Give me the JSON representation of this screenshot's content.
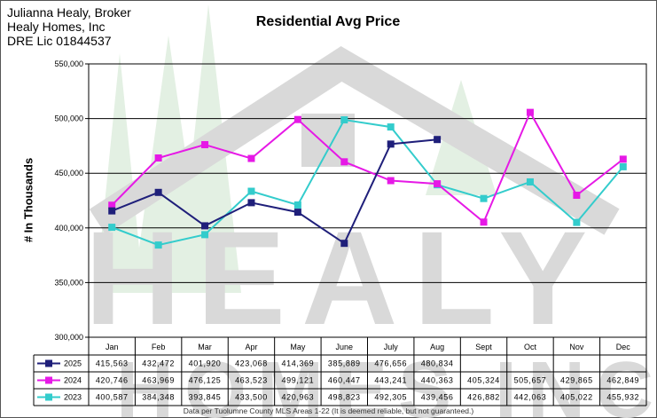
{
  "header": {
    "broker_line1": "Julianna Healy, Broker",
    "broker_line2": "Healy Homes, Inc",
    "broker_line3": "DRE Lic 01844537"
  },
  "footnote": "Data per Tuolumne County MLS Areas 1-22 (It is deemed reliable, but not guaranteed.)",
  "watermark": {
    "text": "HEALY HOMES INC",
    "color": "#d9d9d9",
    "tree_color": "#e3f0e3"
  },
  "chart_data": {
    "type": "line",
    "title": "Residential Avg Price",
    "ylabel": "# In Thousands",
    "xlabel": "",
    "ylim": [
      300000,
      550000
    ],
    "yticks": [
      "300,000",
      "350,000",
      "400,000",
      "450,000",
      "500,000",
      "550,000"
    ],
    "grid": true,
    "legend": "table-below",
    "categories": [
      "Jan",
      "Feb",
      "Mar",
      "Apr",
      "May",
      "June",
      "July",
      "Aug",
      "Sept",
      "Oct",
      "Nov",
      "Dec"
    ],
    "series": [
      {
        "name": "2025",
        "color": "#1f1f7a",
        "values": [
          415563,
          432472,
          401920,
          423068,
          414369,
          385889,
          476656,
          480834,
          null,
          null,
          null,
          null
        ],
        "labels": [
          "415,563",
          "432,472",
          "401,920",
          "423,068",
          "414,369",
          "385,889",
          "476,656",
          "480,834",
          "",
          "",
          "",
          ""
        ]
      },
      {
        "name": "2024",
        "color": "#e619e6",
        "values": [
          420746,
          463969,
          476125,
          463523,
          499121,
          460447,
          443241,
          440363,
          405324,
          505657,
          429865,
          462849
        ],
        "labels": [
          "420,746",
          "463,969",
          "476,125",
          "463,523",
          "499,121",
          "460,447",
          "443,241",
          "440,363",
          "405,324",
          "505,657",
          "429,865",
          "462,849"
        ]
      },
      {
        "name": "2023",
        "color": "#33cccc",
        "values": [
          400587,
          384348,
          393845,
          433500,
          420963,
          498823,
          492305,
          439456,
          426882,
          442063,
          405022,
          455932
        ],
        "labels": [
          "400,587",
          "384,348",
          "393,845",
          "433,500",
          "420,963",
          "498,823",
          "492,305",
          "439,456",
          "426,882",
          "442,063",
          "405,022",
          "455,932"
        ]
      }
    ]
  }
}
